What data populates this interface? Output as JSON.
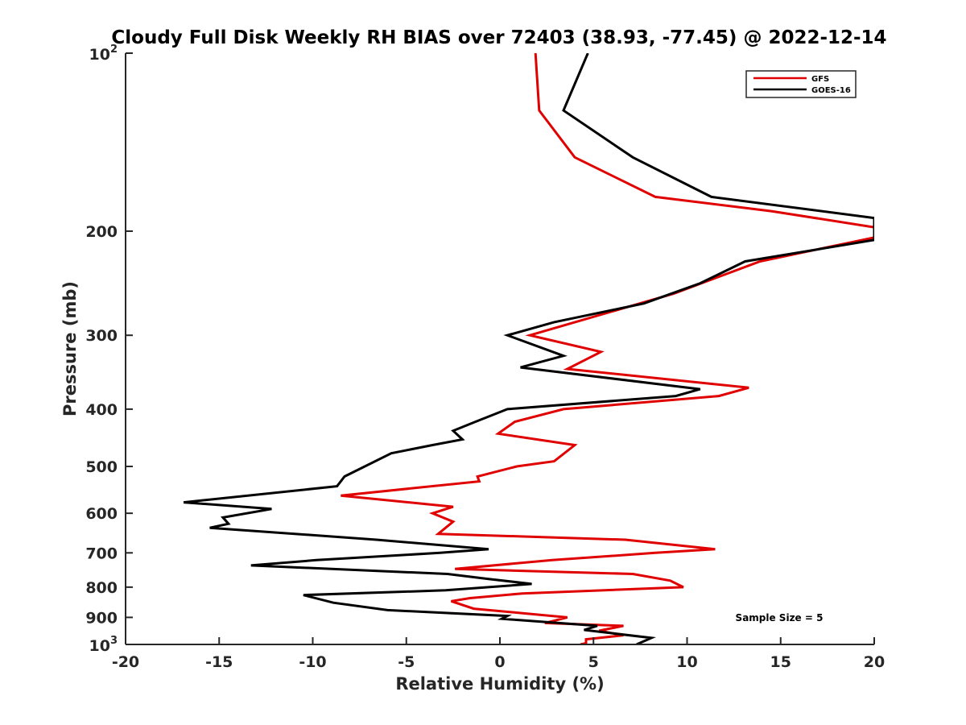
{
  "chart_data": {
    "type": "line",
    "title": "Cloudy Full Disk Weekly RH BIAS over 72403 (38.93, -77.45) @ 2022-12-14",
    "xlabel": "Relative Humidity (%)",
    "ylabel": "Pressure (mb)",
    "xlim": [
      -20,
      20
    ],
    "ylim": [
      100,
      1000
    ],
    "y_scale": "log",
    "y_reversed": true,
    "x_ticks": [
      "-20",
      "-15",
      "-10",
      "-5",
      "0",
      "5",
      "10",
      "15",
      "20"
    ],
    "y_ticks": [
      {
        "base": "10",
        "exp": "2",
        "value": 100
      },
      {
        "label": "200",
        "value": 200
      },
      {
        "label": "300",
        "value": 300
      },
      {
        "label": "400",
        "value": 400
      },
      {
        "label": "500",
        "value": 500
      },
      {
        "label": "600",
        "value": 600
      },
      {
        "label": "700",
        "value": 700
      },
      {
        "label": "800",
        "value": 800
      },
      {
        "label": "900",
        "value": 900
      },
      {
        "base": "10",
        "exp": "3",
        "value": 1000
      }
    ],
    "grid": false,
    "legend_position": "top-right",
    "annotation": "Sample Size = 5",
    "series": [
      {
        "name": "GFS",
        "color": "#e00000",
        "points": [
          [
            1.9,
            100
          ],
          [
            2.1,
            125
          ],
          [
            4.0,
            150
          ],
          [
            8.3,
            175
          ],
          [
            14.5,
            185
          ],
          [
            20.0,
            197
          ],
          [
            20.0,
            205
          ],
          [
            13.9,
            225
          ],
          [
            9.3,
            255
          ],
          [
            1.6,
            300
          ],
          [
            5.4,
            320
          ],
          [
            3.6,
            342
          ],
          [
            13.3,
            368
          ],
          [
            11.7,
            380
          ],
          [
            3.4,
            400
          ],
          [
            0.8,
            420
          ],
          [
            -0.1,
            440
          ],
          [
            4.0,
            460
          ],
          [
            2.9,
            490
          ],
          [
            0.9,
            500
          ],
          [
            -1.2,
            520
          ],
          [
            -1.1,
            530
          ],
          [
            -8.5,
            560
          ],
          [
            -2.5,
            585
          ],
          [
            -3.6,
            600
          ],
          [
            -2.5,
            620
          ],
          [
            -3.3,
            650
          ],
          [
            6.7,
            665
          ],
          [
            11.5,
            690
          ],
          [
            8.3,
            700
          ],
          [
            2.8,
            720
          ],
          [
            -2.4,
            745
          ],
          [
            7.1,
            760
          ],
          [
            9.1,
            780
          ],
          [
            9.8,
            800
          ],
          [
            1.2,
            820
          ],
          [
            -1.6,
            835
          ],
          [
            -2.6,
            845
          ],
          [
            -1.4,
            870
          ],
          [
            3.6,
            900
          ],
          [
            2.4,
            920
          ],
          [
            6.6,
            930
          ],
          [
            5.3,
            948
          ],
          [
            6.6,
            965
          ],
          [
            4.6,
            980
          ],
          [
            4.6,
            995
          ],
          [
            4.3,
            1000
          ]
        ]
      },
      {
        "name": "GOES-16",
        "color": "#000000",
        "points": [
          [
            4.7,
            100
          ],
          [
            3.4,
            125
          ],
          [
            7.1,
            150
          ],
          [
            11.3,
            175
          ],
          [
            20.0,
            190
          ],
          [
            20.0,
            207
          ],
          [
            13.1,
            225
          ],
          [
            10.7,
            245
          ],
          [
            7.7,
            265
          ],
          [
            2.9,
            285
          ],
          [
            0.4,
            300
          ],
          [
            3.4,
            325
          ],
          [
            1.1,
            340
          ],
          [
            10.7,
            370
          ],
          [
            9.4,
            380
          ],
          [
            0.4,
            400
          ],
          [
            -1.3,
            420
          ],
          [
            -2.5,
            435
          ],
          [
            -2.0,
            450
          ],
          [
            -3.6,
            460
          ],
          [
            -5.8,
            475
          ],
          [
            -8.3,
            520
          ],
          [
            -8.7,
            540
          ],
          [
            -16.9,
            575
          ],
          [
            -12.2,
            590
          ],
          [
            -14.8,
            610
          ],
          [
            -14.5,
            625
          ],
          [
            -15.5,
            635
          ],
          [
            -6.6,
            665
          ],
          [
            -0.6,
            690
          ],
          [
            -3.2,
            700
          ],
          [
            -9.8,
            720
          ],
          [
            -13.3,
            735
          ],
          [
            -2.8,
            760
          ],
          [
            -0.6,
            775
          ],
          [
            1.7,
            790
          ],
          [
            -2.9,
            810
          ],
          [
            -10.5,
            825
          ],
          [
            -8.9,
            850
          ],
          [
            -6.0,
            875
          ],
          [
            0.4,
            895
          ],
          [
            0.1,
            905
          ],
          [
            5.2,
            930
          ],
          [
            4.5,
            945
          ],
          [
            8.1,
            975
          ],
          [
            7.3,
            1000
          ]
        ]
      }
    ]
  }
}
